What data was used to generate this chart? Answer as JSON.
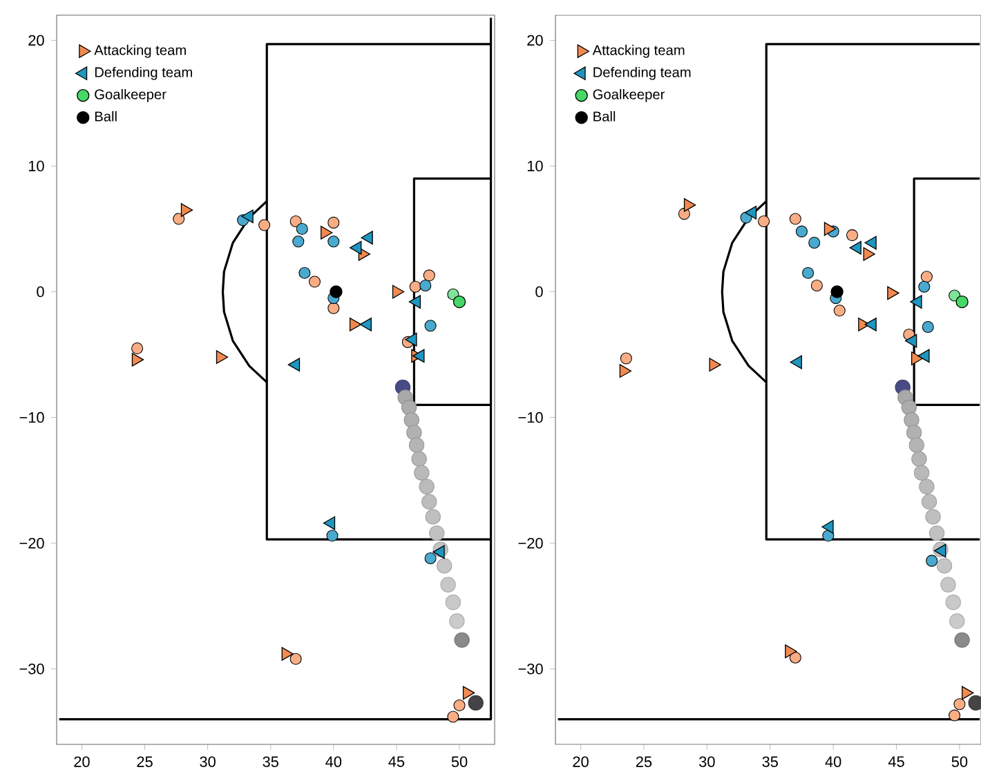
{
  "chart_data": [
    {
      "type": "scatter",
      "legend": "top left",
      "xlim": [
        18,
        52.8
      ],
      "ylim": [
        -36,
        22
      ],
      "xticks": [
        20,
        25,
        30,
        35,
        40,
        45,
        50
      ],
      "yticks": [
        {
          "value": -30,
          "label": "−30"
        },
        {
          "value": -20,
          "label": "−20"
        },
        {
          "value": -10,
          "label": "−10"
        },
        {
          "value": 0,
          "label": "0"
        },
        {
          "value": 10,
          "label": "10"
        },
        {
          "value": 20,
          "label": "20"
        }
      ],
      "series": [
        {
          "type": "line",
          "color": "#000000",
          "x": [
            52.5,
            34.7,
            34.7,
            52.5
          ],
          "values": [
            19.7,
            19.7,
            -19.7,
            -19.7
          ]
        },
        {
          "type": "line",
          "color": "#000000",
          "x": [
            52.5,
            46.4,
            46.4,
            52.5
          ],
          "values": [
            9.0,
            9.0,
            -9.0,
            -9.0
          ]
        },
        {
          "type": "line",
          "color": "#000000",
          "x": [
            18.2,
            52.5,
            52.5
          ],
          "values": [
            -34,
            -34,
            21.8
          ]
        },
        {
          "type": "line",
          "color": "#000000",
          "x": [
            34.7,
            33.3,
            32.0,
            31.3,
            31.2,
            31.3,
            32.0,
            33.3,
            34.7
          ],
          "values": [
            7.2,
            5.9,
            3.9,
            1.6,
            0,
            -1.6,
            -3.9,
            -5.9,
            -7.2
          ]
        },
        {
          "marker": "circle",
          "color": "#f8ad84",
          "x": [
            27.7,
            24.4,
            34.5,
            37.0,
            40.0,
            38.5,
            40.0,
            47.6,
            46.5,
            45.9,
            37.0,
            49.5,
            50.0
          ],
          "values": [
            5.8,
            -4.5,
            5.3,
            5.6,
            5.5,
            0.8,
            -1.3,
            1.3,
            0.4,
            -4.0,
            -29.2,
            -33.8,
            -32.9
          ]
        },
        {
          "marker": "circle",
          "color": "#4aa9cf",
          "x": [
            32.8,
            37.5,
            40.0,
            37.2,
            37.7,
            40.0,
            47.3,
            47.7,
            39.9,
            47.7
          ],
          "values": [
            5.7,
            5.0,
            4.0,
            4.0,
            1.5,
            -0.5,
            0.5,
            -2.7,
            -19.4,
            -21.2
          ]
        },
        {
          "marker": "circle",
          "color": "#7fe39a",
          "x": [
            49.5
          ],
          "values": [
            -0.2
          ]
        },
        {
          "marker": "circle",
          "x": [
            45.5,
            45.7,
            46.0,
            46.2,
            46.4,
            46.6,
            46.8,
            47.0,
            47.4,
            47.6,
            47.9,
            48.2,
            48.5,
            48.8,
            49.1,
            49.5,
            49.8,
            50.2,
            51.3
          ],
          "values": [
            -7.6,
            -8.4,
            -9.2,
            -10.2,
            -11.2,
            -12.2,
            -13.3,
            -14.4,
            -15.5,
            -16.7,
            -17.9,
            -19.2,
            -20.5,
            -21.8,
            -23.3,
            -24.7,
            -26.2,
            -27.7,
            -32.7
          ],
          "colors": [
            "#4a4a85",
            "#a9a9a9",
            "#acacac",
            "#afafaf",
            "#b1b1b1",
            "#b4b4b4",
            "#b6b6b6",
            "#b9b9b9",
            "#bbbbbb",
            "#bdbdbd",
            "#bfbfbf",
            "#c1c1c1",
            "#c3c3c3",
            "#c5c5c5",
            "#c7c7c7",
            "#c9c9c9",
            "#cbcbcb",
            "#8a8a8a",
            "#444444"
          ]
        },
        {
          "name": "Attacking team",
          "marker": "triangle",
          "color": "#f28a50",
          "x": [
            28.2,
            24.3,
            31.0,
            39.3,
            42.3,
            41.6,
            45.0,
            46.5,
            36.2,
            50.6
          ],
          "values": [
            6.5,
            -5.4,
            -5.2,
            4.7,
            3.0,
            -2.6,
            0.0,
            -5.1,
            -28.8,
            -31.9
          ]
        },
        {
          "name": "Defending team",
          "marker": "triangle",
          "color": "#1f96c0",
          "x": [
            33.3,
            42.8,
            41.9,
            42.7,
            46.6,
            46.3,
            46.9,
            37.0,
            39.8,
            48.5
          ],
          "values": [
            6.0,
            4.3,
            3.5,
            -2.6,
            -0.8,
            -3.8,
            -5.1,
            -5.8,
            -18.4,
            -20.7
          ]
        },
        {
          "name": "Goalkeeper",
          "marker": "circle",
          "color": "#46d867",
          "x": [
            50.0
          ],
          "values": [
            -0.8
          ]
        },
        {
          "name": "Ball",
          "marker": "circle",
          "color": "#000000",
          "x": [
            40.2
          ],
          "values": [
            0.0
          ]
        }
      ]
    },
    {
      "type": "scatter",
      "legend": "top left",
      "xlim": [
        18,
        51.7
      ],
      "ylim": [
        -36,
        22
      ],
      "xticks": [
        20,
        25,
        30,
        35,
        40,
        45,
        50
      ],
      "yticks": [
        {
          "value": -30,
          "label": "−30"
        },
        {
          "value": -20,
          "label": "−20"
        },
        {
          "value": -10,
          "label": "−10"
        },
        {
          "value": 0,
          "label": "0"
        },
        {
          "value": 10,
          "label": "10"
        },
        {
          "value": 20,
          "label": "20"
        }
      ],
      "series": [
        {
          "type": "line",
          "color": "#000000",
          "x": [
            51.6,
            34.7,
            34.7,
            51.6
          ],
          "values": [
            19.7,
            19.7,
            -19.7,
            -19.7
          ]
        },
        {
          "type": "line",
          "color": "#000000",
          "x": [
            51.6,
            46.4,
            46.4,
            51.6
          ],
          "values": [
            9.0,
            9.0,
            -9.0,
            -9.0
          ]
        },
        {
          "type": "line",
          "color": "#000000",
          "x": [
            18.2,
            51.6
          ],
          "values": [
            -34,
            -34
          ]
        },
        {
          "type": "line",
          "color": "#000000",
          "x": [
            34.7,
            33.3,
            32.0,
            31.3,
            31.2,
            31.3,
            32.0,
            33.3,
            34.7
          ],
          "values": [
            7.2,
            5.9,
            3.9,
            1.6,
            0,
            -1.6,
            -3.9,
            -5.9,
            -7.2
          ]
        },
        {
          "marker": "circle",
          "color": "#f8ad84",
          "x": [
            28.2,
            23.6,
            34.5,
            37.0,
            41.5,
            38.7,
            40.5,
            47.4,
            46.0,
            37.0,
            49.6,
            50.0
          ],
          "values": [
            6.2,
            -5.3,
            5.6,
            5.8,
            4.5,
            0.5,
            -1.5,
            1.2,
            -3.4,
            -29.1,
            -33.7,
            -32.8
          ]
        },
        {
          "marker": "circle",
          "color": "#4aa9cf",
          "x": [
            33.1,
            37.5,
            40.0,
            38.5,
            38.0,
            40.2,
            47.2,
            47.5,
            39.6,
            47.8
          ],
          "values": [
            5.9,
            4.8,
            4.8,
            3.9,
            1.5,
            -0.5,
            0.4,
            -2.8,
            -19.4,
            -21.4
          ]
        },
        {
          "marker": "circle",
          "color": "#7fe39a",
          "x": [
            49.6
          ],
          "values": [
            -0.3
          ]
        },
        {
          "marker": "circle",
          "x": [
            45.5,
            45.7,
            46.0,
            46.2,
            46.4,
            46.6,
            46.8,
            47.0,
            47.4,
            47.6,
            47.9,
            48.2,
            48.5,
            48.8,
            49.1,
            49.5,
            49.8,
            50.2,
            51.3
          ],
          "values": [
            -7.6,
            -8.4,
            -9.2,
            -10.2,
            -11.2,
            -12.2,
            -13.3,
            -14.4,
            -15.5,
            -16.7,
            -17.9,
            -19.2,
            -20.5,
            -21.8,
            -23.3,
            -24.7,
            -26.2,
            -27.7,
            -32.7
          ],
          "colors": [
            "#4a4a85",
            "#a9a9a9",
            "#acacac",
            "#afafaf",
            "#b1b1b1",
            "#b4b4b4",
            "#b6b6b6",
            "#b9b9b9",
            "#bbbbbb",
            "#bdbdbd",
            "#bfbfbf",
            "#c1c1c1",
            "#c3c3c3",
            "#c5c5c5",
            "#c7c7c7",
            "#c9c9c9",
            "#cbcbcb",
            "#8a8a8a",
            "#444444"
          ]
        },
        {
          "name": "Attacking team",
          "marker": "triangle",
          "color": "#f28a50",
          "x": [
            28.5,
            23.4,
            30.5,
            39.6,
            42.7,
            42.3,
            44.6,
            46.5,
            36.5,
            50.5
          ],
          "values": [
            6.9,
            -6.3,
            -5.8,
            5.0,
            3.0,
            -2.6,
            -0.1,
            -5.3,
            -28.6,
            -31.9
          ]
        },
        {
          "name": "Defending team",
          "marker": "triangle",
          "color": "#1f96c0",
          "x": [
            33.6,
            43.1,
            41.9,
            43.1,
            46.7,
            46.3,
            47.3,
            37.2,
            39.7,
            48.6
          ],
          "values": [
            6.3,
            3.9,
            3.5,
            -2.6,
            -0.8,
            -3.9,
            -5.1,
            -5.6,
            -18.7,
            -20.6
          ]
        },
        {
          "name": "Goalkeeper",
          "marker": "circle",
          "color": "#46d867",
          "x": [
            50.2
          ],
          "values": [
            -0.8
          ]
        },
        {
          "name": "Ball",
          "marker": "circle",
          "color": "#000000",
          "x": [
            40.3
          ],
          "values": [
            0.0
          ]
        }
      ]
    }
  ]
}
